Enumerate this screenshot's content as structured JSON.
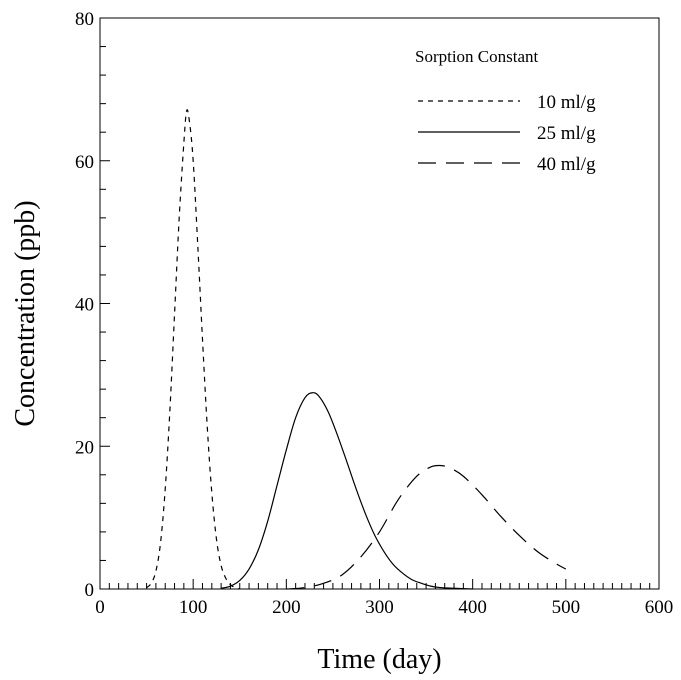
{
  "chart_data": {
    "type": "line",
    "title": "",
    "xlabel": "Time (day)",
    "ylabel": "Concentration (ppb)",
    "xlim": [
      0,
      600
    ],
    "ylim": [
      0,
      80
    ],
    "xticks": [
      0,
      100,
      200,
      300,
      400,
      500,
      600
    ],
    "xtick_labels": [
      "0",
      "100",
      "200",
      "300",
      "400",
      "500",
      "600"
    ],
    "yticks": [
      0,
      20,
      40,
      60,
      80
    ],
    "ytick_labels": [
      "0",
      "20",
      "40",
      "60",
      "80"
    ],
    "grid": false,
    "legend": {
      "title": "Sorption Constant",
      "placement": "top-right"
    },
    "series": [
      {
        "name": "10 ml/g",
        "dash": "short-dash",
        "x": [
          50,
          55,
          60,
          65,
          70,
          75,
          80,
          85,
          90,
          93,
          96,
          100,
          105,
          110,
          115,
          120,
          125,
          130,
          135,
          140,
          145,
          150
        ],
        "y": [
          0.2,
          0.8,
          2.5,
          6.5,
          14.0,
          25.0,
          38.5,
          52.0,
          62.5,
          67.0,
          65.5,
          60.0,
          48.0,
          35.0,
          23.0,
          13.5,
          7.0,
          3.3,
          1.5,
          0.6,
          0.2,
          0.0
        ]
      },
      {
        "name": "25 ml/g",
        "dash": "solid",
        "x": [
          130,
          140,
          150,
          160,
          170,
          180,
          190,
          200,
          210,
          220,
          228,
          235,
          245,
          255,
          265,
          275,
          285,
          295,
          305,
          315,
          325,
          335,
          345,
          355,
          365,
          380,
          400
        ],
        "y": [
          0.1,
          0.4,
          1.2,
          2.8,
          5.5,
          9.5,
          14.5,
          19.5,
          24.0,
          26.8,
          27.5,
          27.0,
          24.8,
          21.5,
          17.8,
          14.0,
          10.5,
          7.5,
          5.2,
          3.4,
          2.2,
          1.3,
          0.8,
          0.4,
          0.2,
          0.1,
          0.0
        ]
      },
      {
        "name": "40 ml/g",
        "dash": "long-dash",
        "x": [
          200,
          220,
          240,
          260,
          280,
          300,
          320,
          340,
          355,
          365,
          375,
          390,
          410,
          430,
          450,
          470,
          490,
          500
        ],
        "y": [
          0.0,
          0.2,
          0.8,
          2.0,
          4.5,
          8.0,
          12.5,
          15.8,
          17.1,
          17.3,
          17.0,
          15.8,
          13.2,
          10.2,
          7.5,
          5.2,
          3.5,
          2.8
        ]
      }
    ]
  }
}
